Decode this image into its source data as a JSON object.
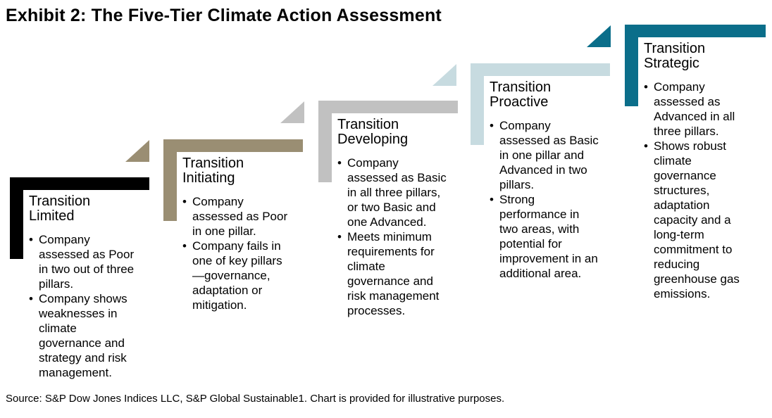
{
  "page": {
    "title": "Exhibit 2: The Five-Tier Climate Action Assessment",
    "source": "Source: S&P Dow Jones Indices LLC, S&P Global Sustainable1. Chart is provided for illustrative purposes."
  },
  "tiers": [
    {
      "title": "Transition Limited",
      "color": "#000000",
      "bullets": [
        "Company assessed as Poor in two out of three pillars.",
        "Company shows weaknesses in climate governance and strategy and risk management."
      ]
    },
    {
      "title": "Transition Initiating",
      "color": "#9A8E73",
      "bullets": [
        "Company assessed as Poor in one pillar.",
        "Company fails in one of key pillars—governance, adaptation or mitigation."
      ]
    },
    {
      "title": "Transition Developing",
      "color": "#C1C1C1",
      "bullets": [
        "Company assessed as Basic in all three pillars, or two Basic and one Advanced.",
        "Meets minimum requirements for climate governance and risk management processes."
      ]
    },
    {
      "title": "Transition Proactive",
      "color": "#C7DBE0",
      "bullets": [
        "Company assessed as Basic in one pillar and Advanced in two pillars.",
        "Strong performance in two areas, with potential for improvement in an additional area."
      ]
    },
    {
      "title": "Transition Strategic",
      "color": "#0B6E8A",
      "bullets": [
        "Company assessed as Advanced in all three pillars.",
        "Shows robust climate governance structures, adaptation capacity and a long-term commitment to reducing greenhouse gas emissions."
      ]
    }
  ]
}
